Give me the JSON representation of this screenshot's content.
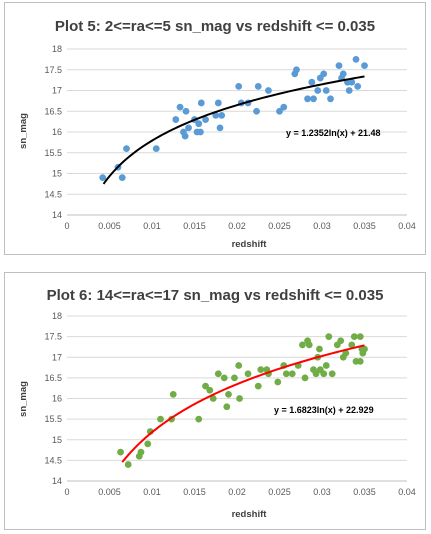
{
  "chart_data": [
    {
      "type": "scatter",
      "title": "Plot 5: 2<=ra<=5 sn_mag vs redshift <= 0.035",
      "xlabel": "redshift",
      "ylabel": "sn_mag",
      "xlim": [
        0,
        0.04
      ],
      "ylim": [
        14,
        18
      ],
      "x_ticks": [
        "0",
        "0.005",
        "0.01",
        "0.015",
        "0.02",
        "0.025",
        "0.03",
        "0.035",
        "0.04"
      ],
      "y_ticks": [
        "14",
        "14.5",
        "15",
        "15.5",
        "16",
        "16.5",
        "17",
        "17.5",
        "18"
      ],
      "grid": "horizontal",
      "point_color": "#5b9bd5",
      "trend_color": "#000000",
      "trendline": {
        "type": "log",
        "a": 1.2352,
        "b": 21.48,
        "x_from": 0.0043,
        "x_to": 0.035
      },
      "equation": "y = 1.2352ln(x) + 21.48",
      "points": [
        [
          0.0042,
          14.9
        ],
        [
          0.006,
          15.15
        ],
        [
          0.0065,
          14.9
        ],
        [
          0.007,
          15.6
        ],
        [
          0.0105,
          15.6
        ],
        [
          0.0128,
          16.3
        ],
        [
          0.0133,
          16.6
        ],
        [
          0.0137,
          16.0
        ],
        [
          0.0139,
          15.9
        ],
        [
          0.014,
          16.5
        ],
        [
          0.0143,
          16.1
        ],
        [
          0.015,
          16.3
        ],
        [
          0.0153,
          16.0
        ],
        [
          0.0155,
          16.2
        ],
        [
          0.0157,
          16.0
        ],
        [
          0.0158,
          16.7
        ],
        [
          0.0163,
          16.3
        ],
        [
          0.0175,
          16.4
        ],
        [
          0.0178,
          16.7
        ],
        [
          0.018,
          16.1
        ],
        [
          0.0182,
          16.4
        ],
        [
          0.0202,
          17.1
        ],
        [
          0.0205,
          16.7
        ],
        [
          0.0213,
          16.7
        ],
        [
          0.0223,
          16.5
        ],
        [
          0.0225,
          17.1
        ],
        [
          0.0237,
          17.0
        ],
        [
          0.025,
          16.5
        ],
        [
          0.0255,
          16.6
        ],
        [
          0.0268,
          17.4
        ],
        [
          0.027,
          17.5
        ],
        [
          0.0283,
          16.8
        ],
        [
          0.0288,
          17.2
        ],
        [
          0.029,
          16.8
        ],
        [
          0.0295,
          17.0
        ],
        [
          0.0298,
          17.3
        ],
        [
          0.0302,
          17.4
        ],
        [
          0.0305,
          17.0
        ],
        [
          0.031,
          16.8
        ],
        [
          0.032,
          17.6
        ],
        [
          0.0323,
          17.3
        ],
        [
          0.0325,
          17.4
        ],
        [
          0.033,
          17.2
        ],
        [
          0.0332,
          17.0
        ],
        [
          0.0335,
          17.2
        ],
        [
          0.034,
          17.75
        ],
        [
          0.0342,
          17.1
        ],
        [
          0.035,
          17.6
        ]
      ]
    },
    {
      "type": "scatter",
      "title": "Plot 6: 14<=ra<=17 sn_mag vs redshift <= 0.035",
      "xlabel": "redshift",
      "ylabel": "sn_mag",
      "xlim": [
        0,
        0.04
      ],
      "ylim": [
        14,
        18
      ],
      "x_ticks": [
        "0",
        "0.005",
        "0.01",
        "0.015",
        "0.02",
        "0.025",
        "0.03",
        "0.035",
        "0.04"
      ],
      "y_ticks": [
        "14",
        "14.5",
        "15",
        "15.5",
        "16",
        "16.5",
        "17",
        "17.5",
        "18"
      ],
      "grid": "horizontal",
      "point_color": "#70ad47",
      "trend_color": "#ff0000",
      "trendline": {
        "type": "log",
        "a": 1.6823,
        "b": 22.929,
        "x_from": 0.0065,
        "x_to": 0.035
      },
      "equation": "y = 1.6823ln(x) + 22.929",
      "points": [
        [
          0.0063,
          14.7
        ],
        [
          0.0072,
          14.4
        ],
        [
          0.0085,
          14.6
        ],
        [
          0.0087,
          14.7
        ],
        [
          0.0095,
          14.9
        ],
        [
          0.0098,
          15.2
        ],
        [
          0.011,
          15.5
        ],
        [
          0.0123,
          15.5
        ],
        [
          0.0125,
          16.1
        ],
        [
          0.0155,
          15.5
        ],
        [
          0.0163,
          16.3
        ],
        [
          0.0168,
          16.2
        ],
        [
          0.0172,
          16.0
        ],
        [
          0.0178,
          16.6
        ],
        [
          0.0185,
          16.5
        ],
        [
          0.0188,
          15.8
        ],
        [
          0.019,
          16.1
        ],
        [
          0.0197,
          16.5
        ],
        [
          0.0202,
          16.8
        ],
        [
          0.0203,
          16.0
        ],
        [
          0.0213,
          16.6
        ],
        [
          0.0225,
          16.3
        ],
        [
          0.0228,
          16.7
        ],
        [
          0.0235,
          16.7
        ],
        [
          0.0237,
          16.6
        ],
        [
          0.0248,
          16.4
        ],
        [
          0.0255,
          16.8
        ],
        [
          0.0258,
          16.6
        ],
        [
          0.0265,
          16.6
        ],
        [
          0.0272,
          16.8
        ],
        [
          0.0277,
          17.3
        ],
        [
          0.028,
          16.5
        ],
        [
          0.0283,
          17.4
        ],
        [
          0.0285,
          17.3
        ],
        [
          0.029,
          16.7
        ],
        [
          0.0293,
          16.6
        ],
        [
          0.0295,
          17.0
        ],
        [
          0.0297,
          17.2
        ],
        [
          0.0298,
          16.7
        ],
        [
          0.0302,
          16.6
        ],
        [
          0.0305,
          16.8
        ],
        [
          0.0308,
          17.5
        ],
        [
          0.0312,
          16.6
        ],
        [
          0.0318,
          17.3
        ],
        [
          0.0322,
          17.4
        ],
        [
          0.0325,
          17.0
        ],
        [
          0.0328,
          17.1
        ],
        [
          0.0335,
          17.3
        ],
        [
          0.0338,
          17.5
        ],
        [
          0.034,
          16.9
        ],
        [
          0.0345,
          17.5
        ],
        [
          0.0347,
          17.2
        ],
        [
          0.0348,
          17.1
        ],
        [
          0.035,
          17.2
        ],
        [
          0.0345,
          16.9
        ]
      ]
    }
  ]
}
